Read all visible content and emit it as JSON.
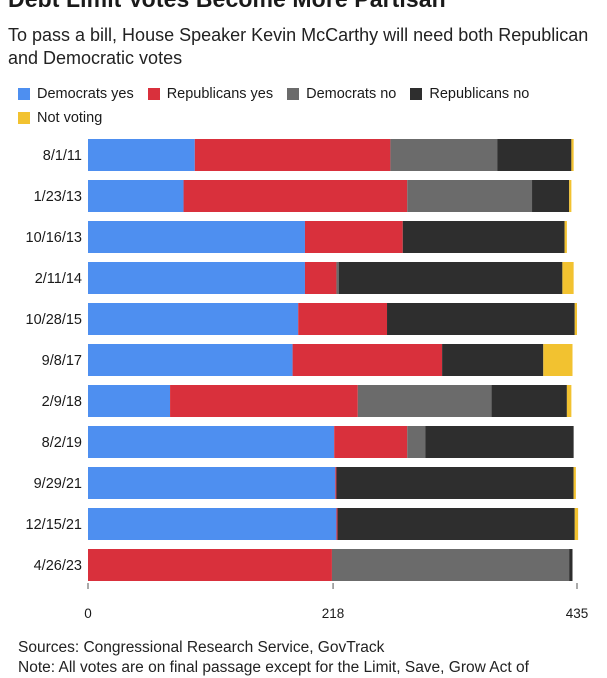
{
  "chart_data": {
    "type": "bar",
    "orientation": "horizontal",
    "stacked": true,
    "title": "Debt Limit Votes Become More Partisan",
    "subtitle": "To pass a bill, House Speaker Kevin McCarthy will need both Republican and Democratic votes",
    "categories": [
      "8/1/11",
      "1/23/13",
      "10/16/13",
      "2/11/14",
      "10/28/15",
      "9/8/17",
      "2/9/18",
      "8/2/19",
      "9/29/21",
      "12/15/21",
      "4/26/23"
    ],
    "series": [
      {
        "name": "Democrats yes",
        "color": "#4e8ff0",
        "values": [
          95,
          85,
          193,
          193,
          187,
          182,
          73,
          219,
          220,
          221,
          0
        ]
      },
      {
        "name": "Republicans yes",
        "color": "#d9303c",
        "values": [
          174,
          199,
          87,
          28,
          79,
          133,
          167,
          65,
          1,
          1,
          217
        ]
      },
      {
        "name": "Democrats no",
        "color": "#6b6b6b",
        "values": [
          95,
          111,
          0,
          2,
          0,
          0,
          119,
          16,
          0,
          0,
          211
        ]
      },
      {
        "name": "Republicans no",
        "color": "#2e2e2e",
        "values": [
          66,
          33,
          144,
          199,
          167,
          90,
          67,
          132,
          211,
          211,
          3
        ]
      },
      {
        "name": "Not voting",
        "color": "#f2c230",
        "values": [
          2,
          2,
          2,
          10,
          2,
          26,
          4,
          0,
          2,
          3,
          0
        ]
      }
    ],
    "xticks": [
      0,
      218,
      435
    ],
    "xlim": [
      0,
      435
    ],
    "grid": false,
    "legend_position": "top"
  },
  "footer": {
    "sources": "Sources: Congressional Research Service, GovTrack",
    "note": "Note: All votes are on final passage except for the Limit, Save, Grow Act of"
  }
}
